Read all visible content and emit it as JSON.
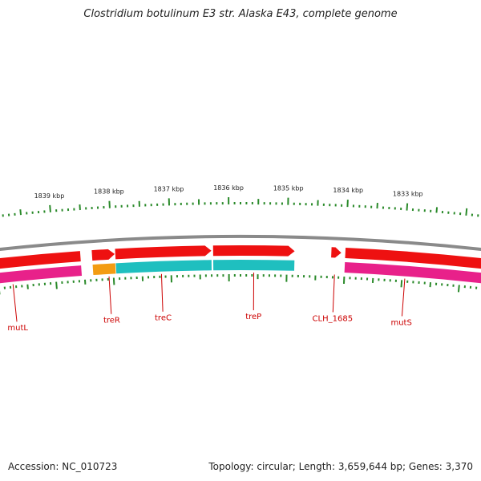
{
  "title": "Clostridium botulinum E3 str. Alaska E43, complete genome",
  "footer": {
    "accession": "Accession: NC_010723",
    "summary": "Topology: circular; Length: 3,659,644 bp; Genes: 3,370"
  },
  "scale": {
    "unit": "kbp",
    "labels": [
      {
        "kbp": 1839,
        "text": "1839 kbp"
      },
      {
        "kbp": 1838,
        "text": "1838 kbp"
      },
      {
        "kbp": 1837,
        "text": "1837 kbp"
      },
      {
        "kbp": 1836,
        "text": "1836 kbp"
      },
      {
        "kbp": 1835,
        "text": "1835 kbp"
      },
      {
        "kbp": 1834,
        "text": "1834 kbp"
      },
      {
        "kbp": 1833,
        "text": "1833 kbp"
      }
    ]
  },
  "colors": {
    "backbone": "#8a8a8a",
    "tick": "#2a8a2a",
    "cds": "#ee1111",
    "label": "#cc0000",
    "mutL_gene": "#e8218a",
    "treR_gene": "#f39c12",
    "treC_gene": "#1fbfbf",
    "treP_gene": "#1fbfbf",
    "mutS_gene": "#e8218a"
  },
  "genes": [
    {
      "name": "mutL",
      "strand": "reverse",
      "start_kbp": 1838.55,
      "end_kbp": 1840.3,
      "gene_color": "mutL_gene",
      "label_kbp": 1839.75
    },
    {
      "name": "treR",
      "strand": "forward",
      "start_kbp": 1837.96,
      "end_kbp": 1838.35,
      "gene_color": "treR_gene",
      "label_kbp": 1838.08
    },
    {
      "name": "treC",
      "strand": "forward",
      "start_kbp": 1836.3,
      "end_kbp": 1837.95,
      "gene_color": "treC_gene",
      "label_kbp": 1837.17
    },
    {
      "name": "treP",
      "strand": "forward",
      "start_kbp": 1834.87,
      "end_kbp": 1836.27,
      "gene_color": "treP_gene",
      "label_kbp": 1835.57
    },
    {
      "name": "CLH_1685",
      "strand": "forward",
      "start_kbp": 1834.07,
      "end_kbp": 1834.24,
      "gene_color": null,
      "label_kbp": 1834.17
    },
    {
      "name": "mutS",
      "strand": "forward",
      "start_kbp": 1831.5,
      "end_kbp": 1834.0,
      "gene_color": "mutS_gene",
      "label_kbp": 1832.95
    }
  ]
}
